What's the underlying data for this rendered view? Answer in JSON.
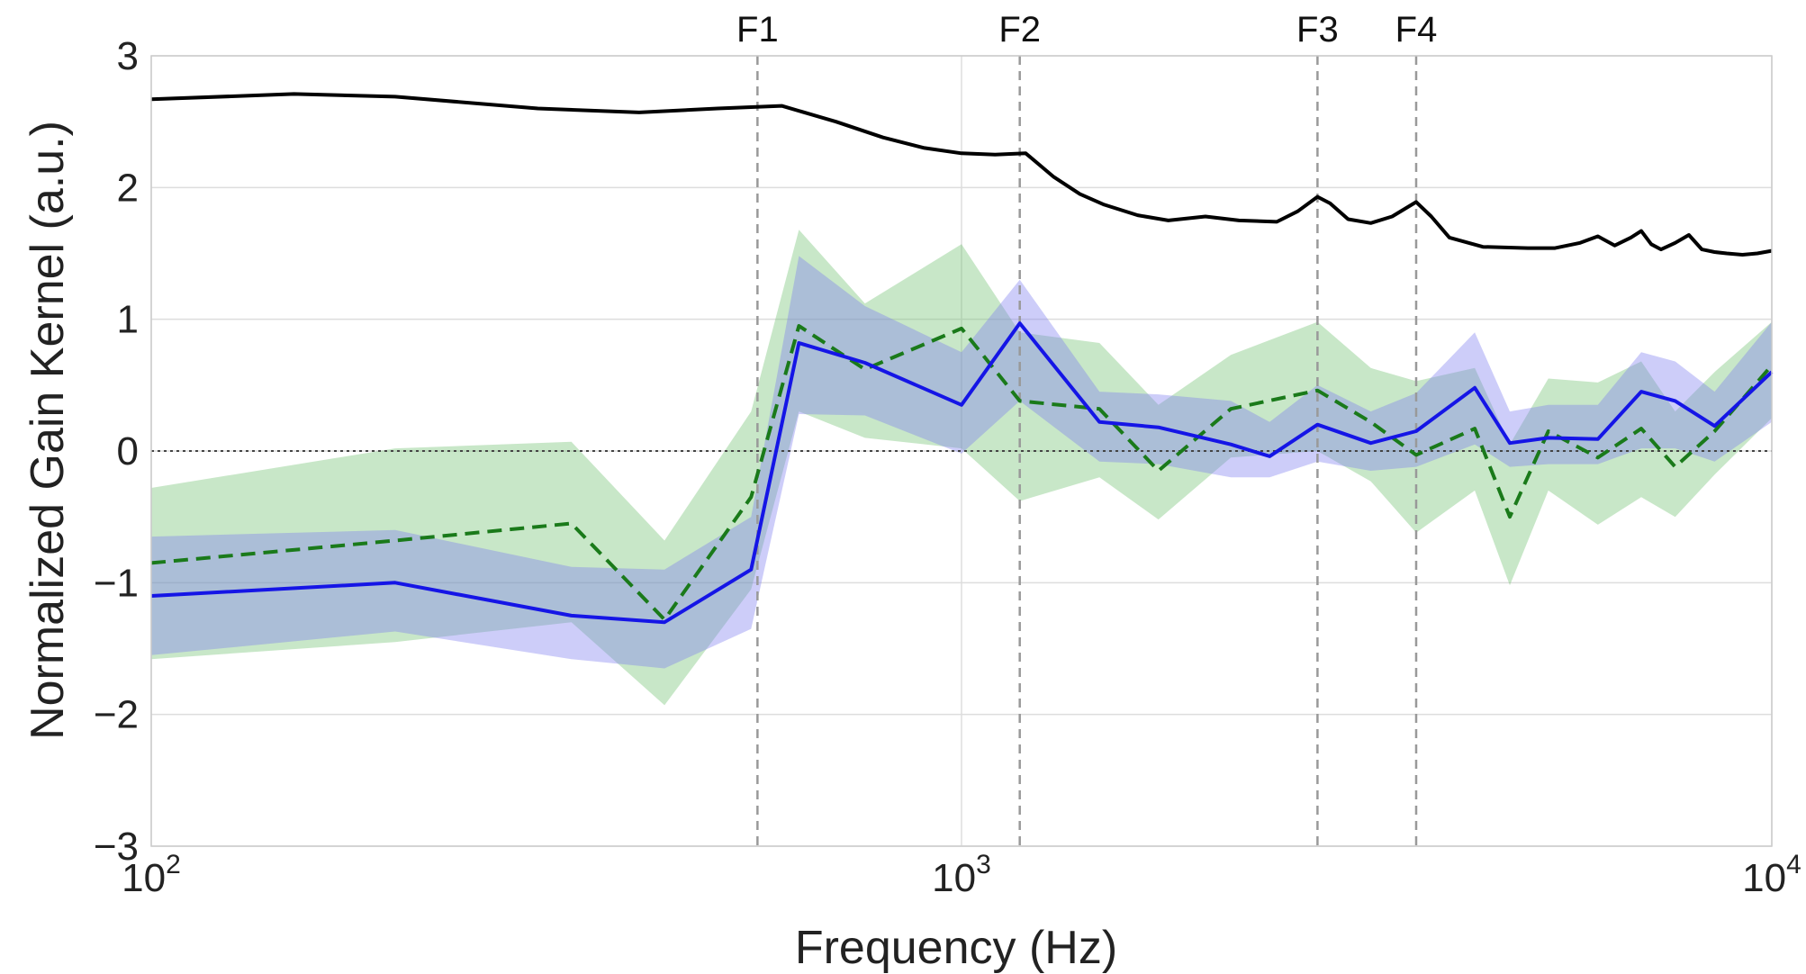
{
  "chart_data": {
    "type": "line",
    "xlabel": "Frequency (Hz)",
    "ylabel": "Normalized Gain Kernel (a.u.)",
    "xscale": "log",
    "xlim": [
      100,
      10000
    ],
    "ylim": [
      -3,
      3
    ],
    "grid": true,
    "x_ticks": [
      {
        "value": 100,
        "base": "10",
        "exp": "2"
      },
      {
        "value": 1000,
        "base": "10",
        "exp": "3"
      },
      {
        "value": 10000,
        "base": "10",
        "exp": "4"
      }
    ],
    "y_ticks": [
      {
        "value": -3,
        "label": "−3"
      },
      {
        "value": -2,
        "label": "−2"
      },
      {
        "value": -1,
        "label": "−1"
      },
      {
        "value": 0,
        "label": "0"
      },
      {
        "value": 1,
        "label": "1"
      },
      {
        "value": 2,
        "label": "2"
      },
      {
        "value": 3,
        "label": "3"
      }
    ],
    "formants": [
      {
        "label": "F1",
        "x": 560
      },
      {
        "label": "F2",
        "x": 1180
      },
      {
        "label": "F3",
        "x": 2750
      },
      {
        "label": "F4",
        "x": 3640
      }
    ],
    "zero_line": 0,
    "series": [
      {
        "color": "#000000",
        "style": "solid",
        "x": [
          100,
          150,
          200,
          300,
          400,
          500,
          600,
          700,
          800,
          900,
          1000,
          1100,
          1200,
          1300,
          1400,
          1500,
          1650,
          1800,
          2000,
          2200,
          2450,
          2600,
          2750,
          2850,
          3000,
          3200,
          3400,
          3640,
          3800,
          4000,
          4400,
          5000,
          5400,
          5800,
          6100,
          6400,
          6700,
          6900,
          7100,
          7300,
          7600,
          7900,
          8200,
          8500,
          8800,
          9200,
          9600,
          10000
        ],
        "y": [
          2.67,
          2.71,
          2.69,
          2.6,
          2.57,
          2.6,
          2.62,
          2.5,
          2.38,
          2.3,
          2.26,
          2.25,
          2.26,
          2.08,
          1.95,
          1.87,
          1.79,
          1.75,
          1.78,
          1.75,
          1.74,
          1.82,
          1.93,
          1.88,
          1.76,
          1.73,
          1.78,
          1.89,
          1.78,
          1.62,
          1.55,
          1.54,
          1.54,
          1.58,
          1.63,
          1.56,
          1.62,
          1.67,
          1.57,
          1.53,
          1.58,
          1.64,
          1.53,
          1.51,
          1.5,
          1.49,
          1.5,
          1.52
        ]
      },
      {
        "color": "#1a7a1a",
        "style": "dashed",
        "band_color": "#6fbf6f",
        "x": [
          100,
          200,
          330,
          430,
          550,
          630,
          760,
          1000,
          1180,
          1480,
          1750,
          2150,
          2750,
          3200,
          3640,
          4300,
          4750,
          5300,
          6100,
          6900,
          7600,
          8500,
          10000
        ],
        "y": [
          -0.85,
          -0.68,
          -0.55,
          -1.28,
          -0.35,
          0.95,
          0.62,
          0.93,
          0.38,
          0.32,
          -0.15,
          0.32,
          0.46,
          0.22,
          -0.03,
          0.17,
          -0.5,
          0.15,
          -0.05,
          0.17,
          -0.12,
          0.15,
          0.65
        ],
        "lower": [
          -1.58,
          -1.45,
          -1.3,
          -1.93,
          -1.05,
          0.3,
          0.1,
          0.02,
          -0.38,
          -0.2,
          -0.52,
          -0.05,
          0.0,
          -0.23,
          -0.62,
          -0.3,
          -1.02,
          -0.3,
          -0.56,
          -0.35,
          -0.5,
          -0.18,
          0.25
        ],
        "upper": [
          -0.28,
          0.02,
          0.07,
          -0.68,
          0.3,
          1.68,
          1.12,
          1.57,
          0.9,
          0.82,
          0.35,
          0.73,
          0.98,
          0.63,
          0.53,
          0.63,
          0.05,
          0.55,
          0.52,
          0.68,
          0.3,
          0.6,
          0.98
        ]
      },
      {
        "color": "#1515e6",
        "style": "solid",
        "band_color": "#7b7bf0",
        "x": [
          100,
          200,
          330,
          430,
          550,
          630,
          760,
          1000,
          1180,
          1480,
          1750,
          2150,
          2400,
          2750,
          3200,
          3640,
          4300,
          4750,
          5300,
          6100,
          6900,
          7600,
          8500,
          10000
        ],
        "y": [
          -1.1,
          -1.0,
          -1.25,
          -1.3,
          -0.9,
          0.82,
          0.67,
          0.35,
          0.97,
          0.22,
          0.18,
          0.05,
          -0.04,
          0.2,
          0.06,
          0.15,
          0.48,
          0.06,
          0.1,
          0.09,
          0.45,
          0.38,
          0.19,
          0.6
        ],
        "lower": [
          -1.55,
          -1.37,
          -1.58,
          -1.65,
          -1.35,
          0.28,
          0.27,
          -0.02,
          0.38,
          -0.08,
          -0.1,
          -0.2,
          -0.2,
          -0.08,
          -0.15,
          -0.12,
          0.05,
          -0.12,
          -0.1,
          -0.1,
          0.02,
          0.02,
          -0.08,
          0.22
        ],
        "upper": [
          -0.65,
          -0.6,
          -0.88,
          -0.9,
          -0.5,
          1.48,
          1.1,
          0.75,
          1.3,
          0.45,
          0.43,
          0.38,
          0.22,
          0.5,
          0.3,
          0.44,
          0.9,
          0.3,
          0.35,
          0.35,
          0.75,
          0.68,
          0.45,
          0.98
        ]
      }
    ]
  }
}
